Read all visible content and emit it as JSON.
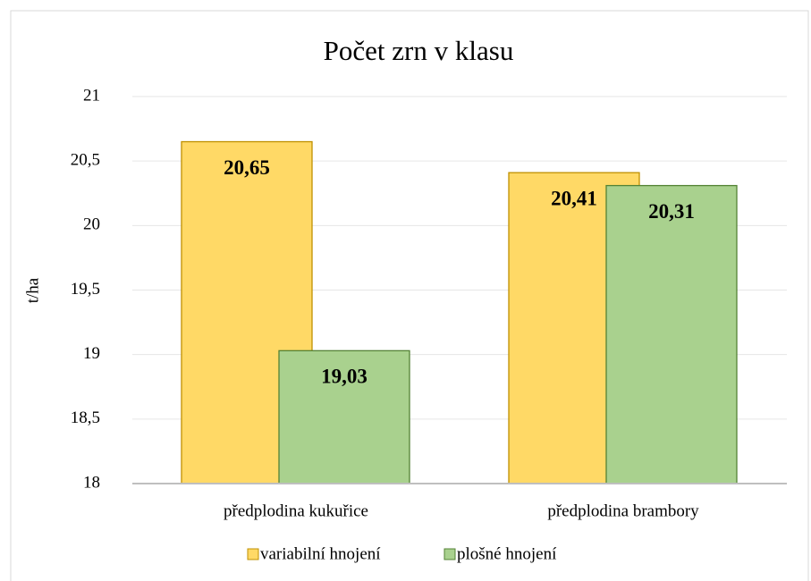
{
  "chart_data": {
    "type": "bar",
    "title": "Počet zrn v klasu",
    "y_label": "t/ha",
    "categories": [
      "předplodina kukuřice",
      "předplodina brambory"
    ],
    "series": [
      {
        "name": "variabilní hnojení",
        "color": "#FFD966",
        "values": [
          20.65,
          20.41
        ],
        "value_labels": [
          "20,65",
          "20,41"
        ]
      },
      {
        "name": "plošné hnojení",
        "color": "#A9D18E",
        "values": [
          19.03,
          20.31
        ],
        "value_labels": [
          "19,03",
          "20,31"
        ]
      }
    ],
    "ylim": [
      18,
      21
    ],
    "yticks": [
      18,
      {
        "value": 18.5,
        "label": "18,5"
      },
      19,
      {
        "value": 19.5,
        "label": "19,5"
      },
      20,
      {
        "value": 20.5,
        "label": "20,5"
      },
      21
    ],
    "grid": true,
    "legend": "bottom"
  }
}
